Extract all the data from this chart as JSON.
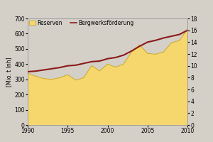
{
  "years": [
    1990,
    1991,
    1992,
    1993,
    1994,
    1995,
    1996,
    1997,
    1998,
    1999,
    2000,
    2001,
    2002,
    2003,
    2004,
    2005,
    2006,
    2007,
    2008,
    2009,
    2010
  ],
  "reserves": [
    340,
    320,
    305,
    300,
    310,
    330,
    295,
    310,
    390,
    355,
    400,
    380,
    400,
    480,
    525,
    470,
    465,
    480,
    540,
    555,
    630
  ],
  "production": [
    9.0,
    9.1,
    9.3,
    9.5,
    9.7,
    10.0,
    10.1,
    10.4,
    10.7,
    10.8,
    11.2,
    11.4,
    11.8,
    12.5,
    13.3,
    14.0,
    14.3,
    14.7,
    15.0,
    15.3,
    16.0
  ],
  "fill_color": "#F5D76E",
  "fill_edge_color": "#C8A830",
  "line_color": "#8B1A1A",
  "bg_color": "#D4D0C8",
  "plot_bg_color": "#D4D0C8",
  "ylabel_left": "[Mio. t Inh]",
  "xlim": [
    1990,
    2010
  ],
  "ylim_left": [
    0,
    700
  ],
  "ylim_right": [
    0,
    18
  ],
  "yticks_left": [
    0,
    100,
    200,
    300,
    400,
    500,
    600,
    700
  ],
  "yticks_right": [
    0,
    2,
    4,
    6,
    8,
    10,
    12,
    14,
    16,
    18
  ],
  "xticks": [
    1990,
    1995,
    2000,
    2005,
    2010
  ],
  "legend_label_fill": "Reserven",
  "legend_label_line": "Bergwerksförderung",
  "axis_fontsize": 5.5,
  "legend_fontsize": 5.5,
  "ylabel_fontsize": 5.5
}
